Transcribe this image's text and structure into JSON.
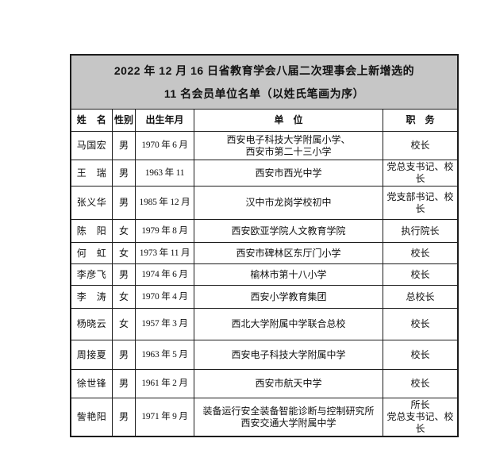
{
  "page": {
    "background": "#ffffff"
  },
  "table": {
    "title_line1": "2022 年 12 月 16 日省教育学会八届二次理事会上新增选的",
    "title_line2": "11 名会员单位名单（以姓氏笔画为序）",
    "title_bg": "#c6c6c6",
    "border_color": "#1c1c1c",
    "headers": [
      "姓　名",
      "性别",
      "出生年月",
      "单　位",
      "职　务"
    ],
    "rows": [
      {
        "name": "马国宏",
        "gender": "男",
        "birth": "1970 年 6 月",
        "unit": "西安电子科技大学附属小学、\n西安市第二十三小学",
        "position": "校长"
      },
      {
        "name": "王　瑞",
        "gender": "男",
        "birth": "1963 年 11",
        "unit": "西安市西光中学",
        "position": "党总支书记、校长"
      },
      {
        "name": "张义华",
        "gender": "男",
        "birth": "1985 年 12 月",
        "unit": "汉中市龙岗学校初中",
        "position": "党支部书记、校长"
      },
      {
        "name": "陈　阳",
        "gender": "女",
        "birth": "1979 年 8 月",
        "unit": "西安欧亚学院人文教育学院",
        "position": "执行院长"
      },
      {
        "name": "何　虹",
        "gender": "女",
        "birth": "1973 年 11 月",
        "unit": "西安市碑林区东厅门小学",
        "position": "校长"
      },
      {
        "name": "李彦飞",
        "gender": "男",
        "birth": "1974 年 6 月",
        "unit": "榆林市第十八小学",
        "position": "校长"
      },
      {
        "name": "李　涛",
        "gender": "女",
        "birth": "1970 年 4 月",
        "unit": "西安小学教育集团",
        "position": "总校长"
      },
      {
        "name": "杨晓云",
        "gender": "女",
        "birth": "1957 年 3 月",
        "unit": "西北大学附属中学联合总校",
        "position": "校长"
      },
      {
        "name": "周接夏",
        "gender": "男",
        "birth": "1963 年 5 月",
        "unit": "西安电子科技大学附属中学",
        "position": "校长"
      },
      {
        "name": "徐世锋",
        "gender": "男",
        "birth": "1961 年 2 月",
        "unit": "西安市航天中学",
        "position": "校长"
      },
      {
        "name": "訾艳阳",
        "gender": "男",
        "birth": "1971 年 9 月",
        "unit": "装备运行安全装备智能诊断与控制研究所\n西安交通大学附属中学",
        "position": "所长\n党总支书记、校长"
      }
    ]
  }
}
